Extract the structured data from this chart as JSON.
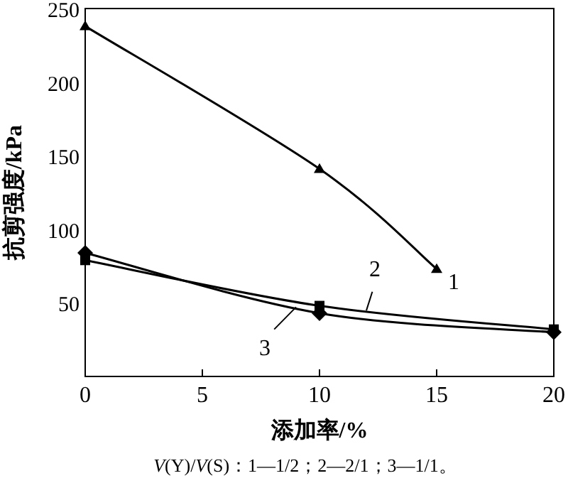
{
  "chart_data": {
    "type": "line",
    "xlabel": "添加率/%",
    "ylabel": "抗剪强度/kPa",
    "annotations": [
      "*V*(Y)/*V*(S)：1—1/2；2—2/1；3—1/1。"
    ],
    "xlim": [
      0,
      20
    ],
    "ylim": [
      0,
      250
    ],
    "xticks": [
      0,
      5,
      10,
      15,
      20
    ],
    "yticks": [
      50,
      100,
      150,
      200,
      250
    ],
    "grid": false,
    "line_style": "solid",
    "series": [
      {
        "name": "1",
        "color": "#000000",
        "marker": "triangle",
        "x": [
          0,
          10,
          15
        ],
        "values": [
          238,
          141,
          73
        ]
      },
      {
        "name": "2",
        "color": "#000000",
        "marker": "square",
        "x": [
          0,
          10,
          20
        ],
        "values": [
          79,
          48,
          32
        ]
      },
      {
        "name": "3",
        "color": "#000000",
        "marker": "diamond",
        "x": [
          0,
          10,
          20
        ],
        "values": [
          84,
          43,
          30
        ]
      }
    ]
  }
}
